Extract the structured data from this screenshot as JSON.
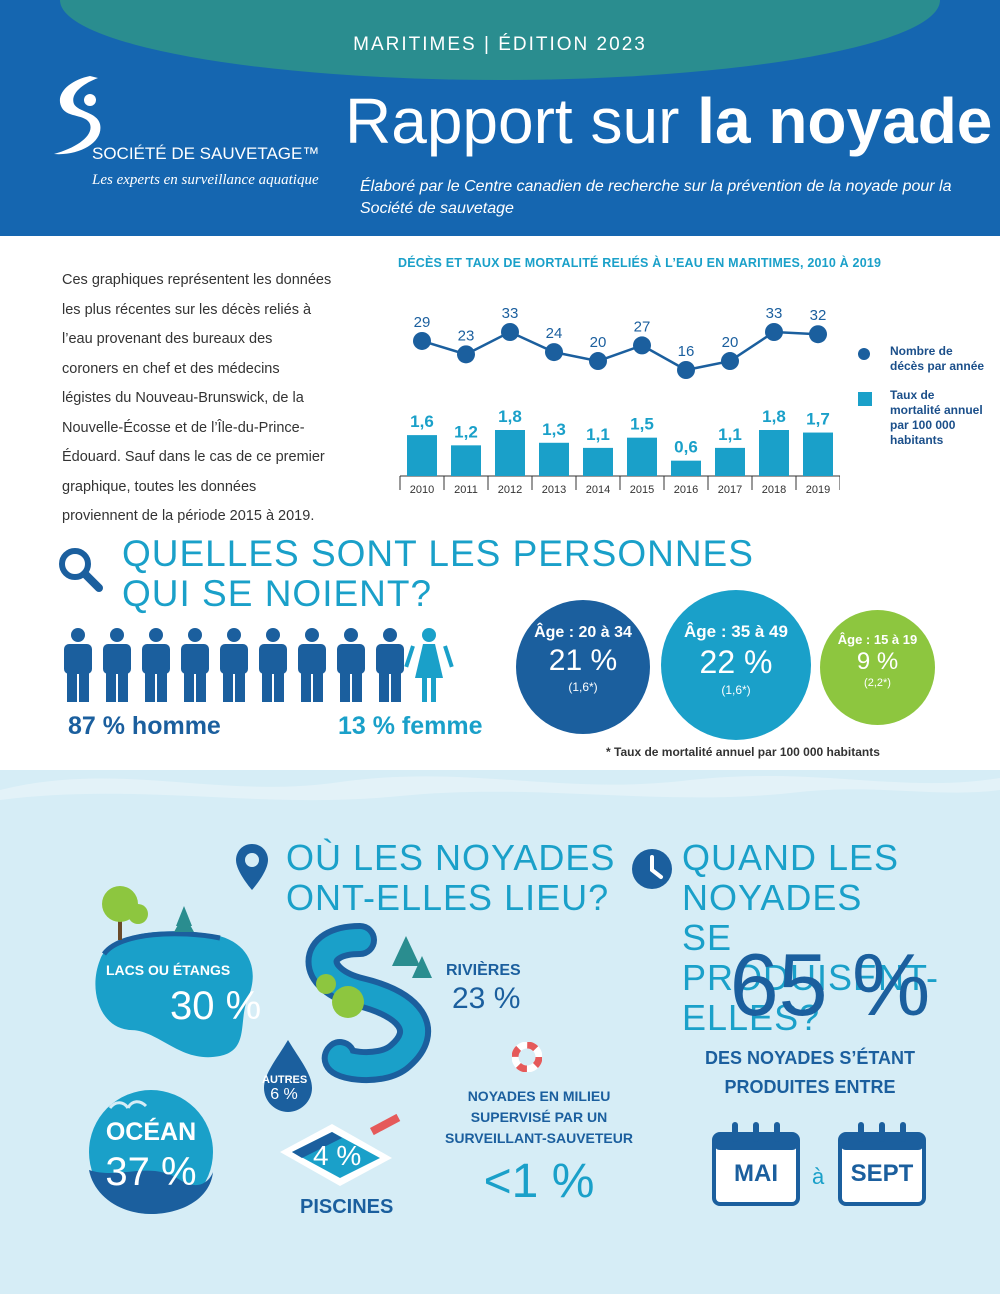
{
  "header": {
    "edition": "MARITIMES  |  ÉDITION 2023",
    "title_light": "Rapport sur ",
    "title_bold": "la noyade",
    "subtitle": "Élaboré par le Centre canadien de recherche sur la prévention de la noyade pour la Société de sauvetage",
    "org_name": "SOCIÉTÉ DE SAUVETAGE™",
    "org_tagline": "Les experts en surveillance aquatique"
  },
  "intro": "Ces graphiques représentent les données les plus récentes sur les décès reliés à l’eau provenant des bureaux des coroners en chef et des médecins légistes du Nouveau-Brunswick, de la Nouvelle-Écosse et de l’Île-du-Prince-Édouard. Sauf dans le cas de ce premier graphique, toutes les données proviennent de la période 2015 à 2019.",
  "chart_data": {
    "type": "bar",
    "title": "DÉCÈS ET TAUX DE MORTALITÉ RELIÉS À L’EAU EN MARITIMES, 2010 À 2019",
    "categories": [
      "2010",
      "2011",
      "2012",
      "2013",
      "2014",
      "2015",
      "2016",
      "2017",
      "2018",
      "2019"
    ],
    "series": [
      {
        "name": "Nombre de décès par année",
        "type": "line",
        "values": [
          29,
          23,
          33,
          24,
          20,
          27,
          16,
          20,
          33,
          32
        ],
        "labels": [
          "29",
          "23",
          "33",
          "24",
          "20",
          "27",
          "16",
          "20",
          "33",
          "32"
        ]
      },
      {
        "name": "Taux de mortalité annuel par 100 000 habitants",
        "type": "bar",
        "values": [
          1.6,
          1.2,
          1.8,
          1.3,
          1.1,
          1.5,
          0.6,
          1.1,
          1.8,
          1.7
        ],
        "labels": [
          "1,6",
          "1,2",
          "1,8",
          "1,3",
          "1,1",
          "1,5",
          "0,6",
          "1,1",
          "1,8",
          "1,7"
        ]
      }
    ],
    "legend": "right",
    "colors": {
      "line": "#1b5f9e",
      "bar": "#1aa0c9"
    }
  },
  "legend": {
    "deaths": "Nombre de décès par année",
    "rate": "Taux de mortalité annuel par 100 000 habitants"
  },
  "who": {
    "title_line1": "QUELLES SONT LES PERSONNES",
    "title_line2": "QUI SE NOIENT?",
    "men": "87 % homme",
    "women": "13 % femme",
    "men_fraction": 0.87,
    "ages": [
      {
        "age": "Âge : 20 à 34",
        "pct": "21 %",
        "rate": "(1,6*)"
      },
      {
        "age": "Âge : 35 à 49",
        "pct": "22 %",
        "rate": "(1,6*)"
      },
      {
        "age": "Âge : 15 à 19",
        "pct": "9 %",
        "rate": "(2,2*)"
      }
    ],
    "footnote": "* Taux de mortalité annuel par 100 000 habitants"
  },
  "where": {
    "title_line1": "OÙ LES NOYADES",
    "title_line2": "ONT-ELLES LIEU?",
    "lakes_label": "LACS OU ÉTANGS",
    "lakes_pct": "30 %",
    "rivers_label": "RIVIÈRES",
    "rivers_pct": "23 %",
    "other_label": "AUTRES",
    "other_pct": "6 %",
    "ocean_label": "OCÉAN",
    "ocean_pct": "37 %",
    "pools_pct": "4 %",
    "pools_label": "PISCINES",
    "supervised_label": "NOYADES EN MILIEU SUPERVISÉ PAR UN SURVEILLANT-SAUVETEUR",
    "supervised_pct": "<1 %"
  },
  "when": {
    "title_line1": "QUAND LES NOYADES",
    "title_line2": "SE PRODUISENT-ELLES?",
    "pct": "65 %",
    "sub": "DES NOYADES S’ÉTANT PRODUITES ENTRE",
    "from": "MAI",
    "to_word": "à",
    "to": "SEPT"
  },
  "colors": {
    "dark_blue": "#1566b0",
    "navy": "#1b5f9e",
    "cyan": "#1aa0c9",
    "green": "#8dc63f",
    "teal": "#2a8d8f"
  },
  "icons": [
    "search-icon",
    "map-pin-icon",
    "clock-icon",
    "lifebuoy-icon",
    "calendar-icon",
    "male-icon",
    "female-icon",
    "tree-icon"
  ]
}
